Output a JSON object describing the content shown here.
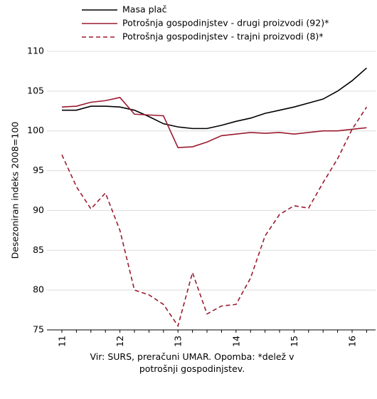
{
  "chart_data": {
    "type": "line",
    "y_label": "Desezoniran indeks 2008=100",
    "note": "Vir: SURS, preračuni UMAR. Opomba: *delež v potrošnji gospodinjstev.",
    "categories": [
      "Q1 11",
      null,
      null,
      null,
      "Q1 12",
      null,
      null,
      null,
      "Q1 13",
      null,
      null,
      null,
      "Q1 14",
      null,
      null,
      null,
      "Q1 15",
      null,
      null,
      null,
      "Q1 16",
      null
    ],
    "series": [
      {
        "name": "Masa plač",
        "color": "#000000",
        "line_style": "solid",
        "values": [
          102.6,
          102.6,
          103.1,
          103.1,
          103.0,
          102.6,
          101.8,
          100.9,
          100.5,
          100.3,
          100.3,
          100.7,
          101.2,
          101.6,
          102.2,
          102.6,
          103.0,
          103.5,
          104.0,
          105.0,
          106.3,
          107.9
        ]
      },
      {
        "name": "Potrošnja gospodinjstev - drugi proizvodi (92)*",
        "color": "#9b1b30",
        "line_style": "solid",
        "values": [
          103.0,
          103.1,
          103.6,
          103.8,
          104.2,
          102.1,
          102.0,
          101.9,
          97.9,
          98.0,
          98.6,
          99.4,
          99.6,
          99.8,
          99.7,
          99.8,
          99.6,
          99.8,
          100.0,
          100.0,
          100.2,
          100.4
        ]
      },
      {
        "name": "Potrošnja gospodinjstev - trajni proizvodi (8)*",
        "color": "#9b1b30",
        "line_style": "dashed",
        "values": [
          97.0,
          93.0,
          90.2,
          92.2,
          87.5,
          80.0,
          79.4,
          78.2,
          75.5,
          82.2,
          77.0,
          78.0,
          78.2,
          81.5,
          86.8,
          89.5,
          90.6,
          90.3,
          93.5,
          96.5,
          100.2,
          103.0
        ]
      }
    ],
    "ylim": [
      75,
      110
    ],
    "yticks": [
      75,
      80,
      85,
      90,
      95,
      100,
      105,
      110
    ],
    "grid": true
  }
}
